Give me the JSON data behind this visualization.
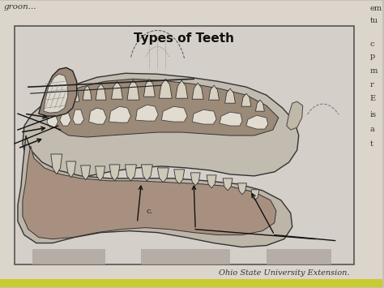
{
  "title": "Types of Teeth",
  "credit": "Ohio State University Extension.",
  "page_bg": "#c9c0b4",
  "box_bg": "#d8d4cc",
  "box_inner_bg": "#ccc8c0",
  "box_border": "#555555",
  "gum_dark": "#9b8878",
  "gum_medium": "#b8a898",
  "tooth_white": "#ddd8cc",
  "tooth_outline": "#333333",
  "label_c": "c.",
  "title_fontsize": 11,
  "credit_fontsize": 7,
  "top_text": "groon...",
  "right_texts": [
    "em",
    "tu",
    "",
    "c",
    "p",
    "m",
    "r",
    "E",
    "is",
    "a",
    "t"
  ],
  "yellow_strip": "#c8cc30",
  "arrow_color": "#111111",
  "bg_light": "#dbd5cc"
}
